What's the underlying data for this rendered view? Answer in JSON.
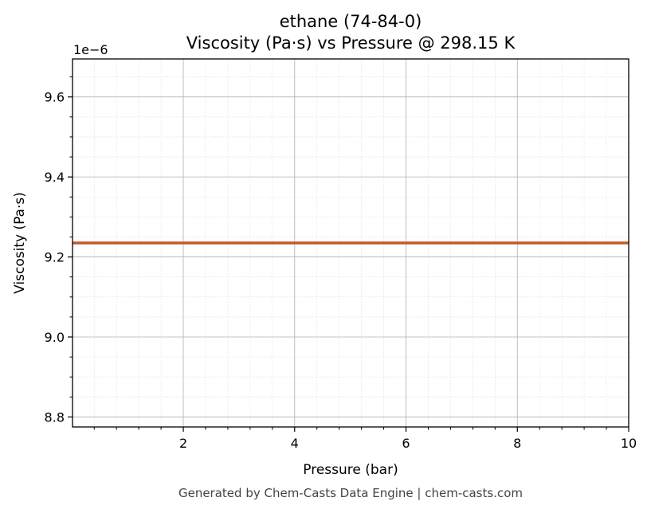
{
  "chart_data": {
    "type": "line",
    "title": "ethane (74-84-0)",
    "subtitle": "Viscosity (Pa·s) vs Pressure @ 298.15 K",
    "xlabel": "Pressure (bar)",
    "ylabel": "Viscosity (Pa·s)",
    "y_offset_label": "1e−6",
    "x_ticks": [
      2,
      4,
      6,
      8,
      10
    ],
    "x_tick_labels": [
      "2",
      "4",
      "6",
      "8",
      "10"
    ],
    "y_ticks": [
      8.8,
      9.0,
      9.2,
      9.4,
      9.6
    ],
    "y_tick_labels": [
      "8.8",
      "9.0",
      "9.2",
      "9.4",
      "9.6"
    ],
    "xlim": [
      0.01,
      10
    ],
    "ylim": [
      8.775,
      9.695
    ],
    "grid": true,
    "series": [
      {
        "color": "#c8562b",
        "x": [
          0.01,
          1,
          2,
          3,
          4,
          5,
          6,
          7,
          8,
          9,
          10
        ],
        "y": [
          9.235,
          9.235,
          9.235,
          9.235,
          9.235,
          9.235,
          9.235,
          9.235,
          9.235,
          9.235,
          9.235
        ]
      }
    ]
  },
  "footer": "Generated by Chem-Casts Data Engine | chem-casts.com"
}
